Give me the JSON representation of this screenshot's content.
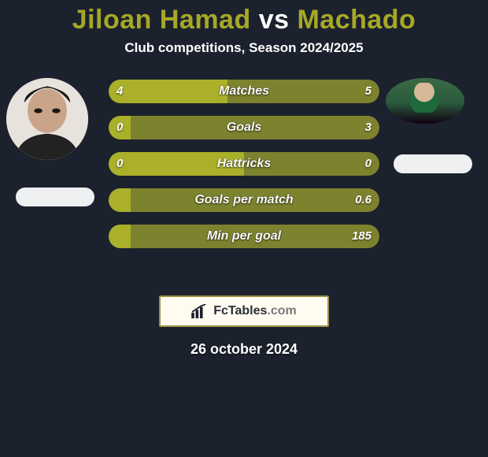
{
  "title": {
    "player1": "Jiloan Hamad",
    "vs": "vs",
    "player2": "Machado",
    "fontsize": 34,
    "color_players": "#a6a826",
    "color_vs": "#ffffff"
  },
  "subtitle": {
    "text": "Club competitions, Season 2024/2025",
    "fontsize": 17
  },
  "background_color": "#1c212e",
  "bars": {
    "label_fontsize": 16,
    "value_fontsize": 15,
    "height": 30,
    "gap": 16,
    "left_color": "#aab02a",
    "right_color": "#7d822e",
    "rows": [
      {
        "label": "Matches",
        "left_val": "4",
        "right_val": "5",
        "left_pct": 44,
        "right_pct": 56
      },
      {
        "label": "Goals",
        "left_val": "0",
        "right_val": "3",
        "left_pct": 8,
        "right_pct": 92
      },
      {
        "label": "Hattricks",
        "left_val": "0",
        "right_val": "0",
        "left_pct": 50,
        "right_pct": 50
      },
      {
        "label": "Goals per match",
        "left_val": "",
        "right_val": "0.6",
        "left_pct": 8,
        "right_pct": 92
      },
      {
        "label": "Min per goal",
        "left_val": "",
        "right_val": "185",
        "left_pct": 8,
        "right_pct": 92
      }
    ]
  },
  "badge": {
    "brand_left": "Fc",
    "brand_mid": "Tables",
    "brand_right": ".com",
    "bg": "#fffbf0",
    "border": "#9b9049",
    "fontsize": 16
  },
  "date": {
    "text": "26 october 2024",
    "fontsize": 18
  },
  "pill_color": "#eef0f1"
}
